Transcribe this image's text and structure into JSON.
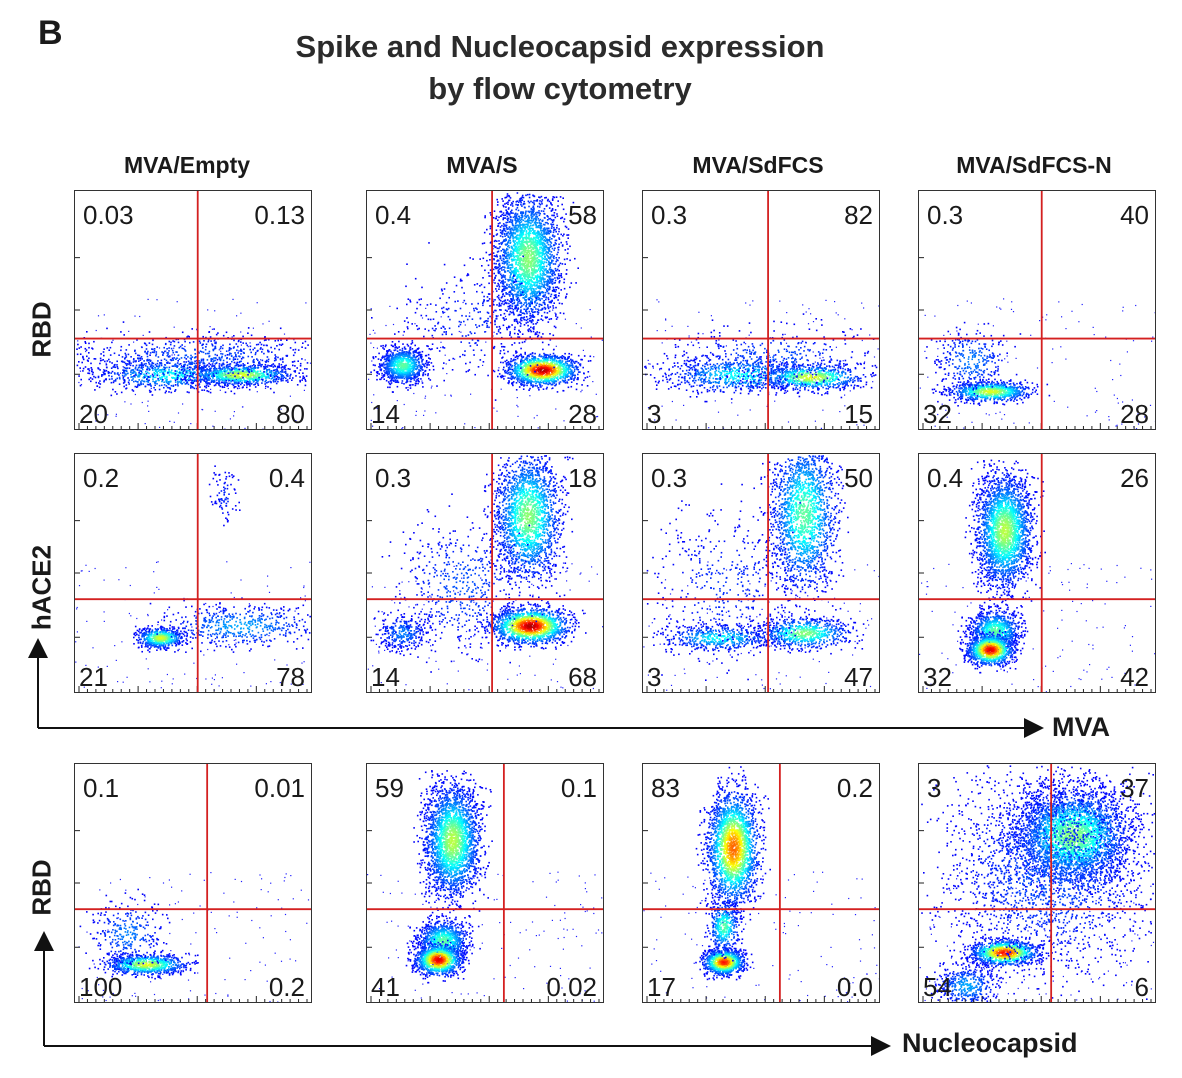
{
  "figure": {
    "panel_letter": "B",
    "title_line1": "Spike and Nucleocapsid expression",
    "title_line2": "by flow cytometry",
    "columns": [
      "MVA/Empty",
      "MVA/S",
      "MVA/SdFCS",
      "MVA/SdFCS-N"
    ],
    "row_labels": [
      "RBD",
      "hACE2",
      "RBD"
    ],
    "x_axis_labels": [
      "MVA",
      "Nucleocapsid"
    ]
  },
  "colors": {
    "gate": "#d42020",
    "axis": "#111111",
    "low_density": "#1a1aff",
    "high_density": "#ff1a00"
  },
  "chart_data": [
    {
      "type": "scatter",
      "ylabel": "RBD",
      "xlabel": "MVA",
      "title": "MVA/Empty",
      "quadrants": {
        "UL": "0.03",
        "UR": "0.13",
        "LL": "20",
        "LR": "80"
      }
    },
    {
      "type": "scatter",
      "ylabel": "RBD",
      "xlabel": "MVA",
      "title": "MVA/S",
      "quadrants": {
        "UL": "0.4",
        "UR": "58",
        "LL": "14",
        "LR": "28"
      }
    },
    {
      "type": "scatter",
      "ylabel": "RBD",
      "xlabel": "MVA",
      "title": "MVA/SdFCS",
      "quadrants": {
        "UL": "0.3",
        "UR": "82",
        "LL": "3",
        "LR": "15"
      }
    },
    {
      "type": "scatter",
      "ylabel": "RBD",
      "xlabel": "MVA",
      "title": "MVA/SdFCS-N",
      "quadrants": {
        "UL": "0.3",
        "UR": "40",
        "LL": "32",
        "LR": "28"
      }
    },
    {
      "type": "scatter",
      "ylabel": "hACE2",
      "xlabel": "MVA",
      "title": "MVA/Empty",
      "quadrants": {
        "UL": "0.2",
        "UR": "0.4",
        "LL": "21",
        "LR": "78"
      }
    },
    {
      "type": "scatter",
      "ylabel": "hACE2",
      "xlabel": "MVA",
      "title": "MVA/S",
      "quadrants": {
        "UL": "0.3",
        "UR": "18",
        "LL": "14",
        "LR": "68"
      }
    },
    {
      "type": "scatter",
      "ylabel": "hACE2",
      "xlabel": "MVA",
      "title": "MVA/SdFCS",
      "quadrants": {
        "UL": "0.3",
        "UR": "50",
        "LL": "3",
        "LR": "47"
      }
    },
    {
      "type": "scatter",
      "ylabel": "hACE2",
      "xlabel": "MVA",
      "title": "MVA/SdFCS-N",
      "quadrants": {
        "UL": "0.4",
        "UR": "26",
        "LL": "32",
        "LR": "42"
      }
    },
    {
      "type": "scatter",
      "ylabel": "RBD",
      "xlabel": "Nucleocapsid",
      "title": "MVA/Empty",
      "quadrants": {
        "UL": "0.1",
        "UR": "0.01",
        "LL": "100",
        "LR": "0.2"
      }
    },
    {
      "type": "scatter",
      "ylabel": "RBD",
      "xlabel": "Nucleocapsid",
      "title": "MVA/S",
      "quadrants": {
        "UL": "59",
        "UR": "0.1",
        "LL": "41",
        "LR": "0.02"
      }
    },
    {
      "type": "scatter",
      "ylabel": "RBD",
      "xlabel": "Nucleocapsid",
      "title": "MVA/SdFCS",
      "quadrants": {
        "UL": "83",
        "UR": "0.2",
        "LL": "17",
        "LR": "0.0"
      }
    },
    {
      "type": "scatter",
      "ylabel": "RBD",
      "xlabel": "Nucleocapsid",
      "title": "MVA/SdFCS-N",
      "quadrants": {
        "UL": "3",
        "UR": "37",
        "LL": "54",
        "LR": "6"
      }
    }
  ]
}
